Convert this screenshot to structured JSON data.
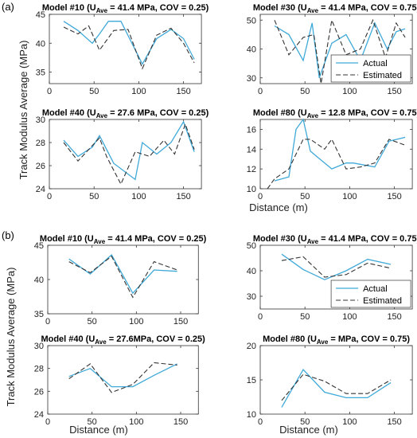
{
  "labels": {
    "a": "(a)",
    "b": "(b)"
  },
  "common": {
    "ylabel": "Track Modulus Average (MPa)",
    "xlabel": "Distance (m)",
    "legend": {
      "actual": "Actual",
      "estimated": "Estimated"
    },
    "colors": {
      "actual": "#3FA9D8",
      "estimated": "#333333"
    }
  },
  "chart_data": [
    {
      "id": "a10",
      "type": "line",
      "title": {
        "pre": "Model #10 (U",
        "sub": "Ave",
        "post": " = 41.4 MPa, COV = 0.25)"
      },
      "xlim": [
        0,
        170
      ],
      "ylim": [
        33,
        45
      ],
      "xticks": [
        0,
        50,
        100,
        150
      ],
      "yticks": [
        35,
        40,
        45
      ],
      "series": [
        {
          "name": "Actual",
          "x": [
            16,
            32,
            48,
            56,
            66,
            80,
            104,
            120,
            136,
            150,
            162
          ],
          "y": [
            43.8,
            42.2,
            40.0,
            41.6,
            43.8,
            43.8,
            36.4,
            40.8,
            42.4,
            40.8,
            37.2
          ]
        },
        {
          "name": "Estimated",
          "x": [
            16,
            32,
            44,
            56,
            72,
            88,
            104,
            120,
            136,
            150,
            162
          ],
          "y": [
            42.8,
            41.6,
            43.0,
            38.8,
            42.2,
            42.4,
            35.6,
            41.4,
            42.6,
            40.0,
            36.6
          ]
        }
      ]
    },
    {
      "id": "a30",
      "type": "line",
      "title": {
        "pre": "Model #30 (U",
        "sub": "Ave",
        "post": " = 41.4 MPa, COV = 0.75)"
      },
      "xlim": [
        0,
        170
      ],
      "ylim": [
        28,
        52
      ],
      "xticks": [
        0,
        50,
        100,
        150
      ],
      "yticks": [
        30,
        40,
        50
      ],
      "legend": {
        "show": true,
        "position": "bottom-right"
      },
      "series": [
        {
          "name": "Actual",
          "x": [
            16,
            32,
            48,
            58,
            66,
            80,
            96,
            112,
            128,
            142,
            152,
            162
          ],
          "y": [
            48.0,
            45.0,
            36.0,
            49.0,
            30.0,
            42.0,
            45.0,
            36.0,
            49.0,
            40.0,
            46.0,
            47.0
          ]
        },
        {
          "name": "Estimated",
          "x": [
            16,
            32,
            48,
            60,
            68,
            80,
            96,
            112,
            126,
            140,
            152,
            162
          ],
          "y": [
            50.0,
            38.0,
            44.0,
            45.0,
            28.0,
            50.0,
            38.0,
            40.0,
            50.0,
            37.0,
            49.0,
            44.0
          ]
        }
      ]
    },
    {
      "id": "a40",
      "type": "line",
      "title": {
        "pre": "Model #40 (U",
        "sub": "Ave",
        "post": " = 27.6  MPa, COV = 0.25)"
      },
      "xlim": [
        0,
        170
      ],
      "ylim": [
        24,
        30
      ],
      "xticks": [
        0,
        50,
        100,
        150
      ],
      "yticks": [
        24,
        26,
        28,
        30
      ],
      "series": [
        {
          "name": "Actual",
          "x": [
            16,
            32,
            48,
            56,
            72,
            96,
            104,
            120,
            136,
            150,
            162
          ],
          "y": [
            28.2,
            26.8,
            27.6,
            28.6,
            26.2,
            24.8,
            28.0,
            27.0,
            28.0,
            29.8,
            27.2
          ]
        },
        {
          "name": "Estimated",
          "x": [
            16,
            32,
            56,
            64,
            80,
            96,
            112,
            128,
            140,
            152,
            162
          ],
          "y": [
            28.0,
            26.4,
            28.4,
            26.8,
            24.4,
            27.2,
            26.8,
            28.2,
            27.0,
            29.6,
            27.4
          ]
        }
      ]
    },
    {
      "id": "a80",
      "type": "line",
      "title": {
        "pre": "Model #80 (U",
        "sub": "Ave",
        "post": " = 12.8  MPa, COV = 0.75)"
      },
      "xlim": [
        0,
        170
      ],
      "ylim": [
        10,
        17
      ],
      "xticks": [
        0,
        50,
        100,
        150
      ],
      "yticks": [
        10,
        12,
        14,
        16
      ],
      "series": [
        {
          "name": "Actual",
          "x": [
            16,
            32,
            40,
            48,
            56,
            64,
            80,
            96,
            104,
            128,
            144,
            162
          ],
          "y": [
            10.8,
            11.2,
            16.0,
            17.0,
            13.8,
            13.2,
            12.0,
            12.6,
            12.6,
            12.2,
            14.8,
            15.2
          ]
        },
        {
          "name": "Estimated",
          "x": [
            8,
            16,
            32,
            48,
            56,
            72,
            80,
            96,
            112,
            128,
            144,
            162
          ],
          "y": [
            10.0,
            11.0,
            12.0,
            15.0,
            15.0,
            14.0,
            15.0,
            12.0,
            12.2,
            12.6,
            15.0,
            14.4
          ]
        }
      ]
    },
    {
      "id": "b10",
      "type": "line",
      "title": {
        "pre": "Model #10 (U",
        "sub": "Ave",
        "post": " =  41.4 MPa, COV = 0.25)"
      },
      "xlim": [
        0,
        170
      ],
      "ylim": [
        35,
        45
      ],
      "xticks": [
        0,
        50,
        100,
        150
      ],
      "yticks": [
        35,
        40,
        45
      ],
      "series": [
        {
          "name": "Actual",
          "x": [
            24,
            48,
            72,
            96,
            120,
            146
          ],
          "y": [
            43.0,
            40.8,
            43.6,
            38.0,
            41.4,
            41.2
          ]
        },
        {
          "name": "Estimated",
          "x": [
            24,
            48,
            72,
            96,
            120,
            146
          ],
          "y": [
            42.6,
            41.0,
            43.4,
            37.4,
            42.6,
            41.4
          ]
        }
      ]
    },
    {
      "id": "b30",
      "type": "line",
      "title": {
        "pre": "Model #30 (U",
        "sub": "Ave",
        "post": " =  41.4 MPa, COV = 0.75)"
      },
      "xlim": [
        0,
        170
      ],
      "ylim": [
        25,
        50
      ],
      "xticks": [
        0,
        50,
        100,
        150
      ],
      "yticks": [
        30,
        40,
        50
      ],
      "legend": {
        "show": true,
        "position": "bottom-right"
      },
      "series": [
        {
          "name": "Actual",
          "x": [
            24,
            48,
            72,
            96,
            120,
            146
          ],
          "y": [
            46.5,
            40.5,
            36.5,
            40.0,
            44.5,
            42.5
          ]
        },
        {
          "name": "Estimated",
          "x": [
            24,
            48,
            72,
            96,
            120,
            146
          ],
          "y": [
            44.0,
            45.5,
            37.5,
            38.5,
            43.0,
            41.0
          ]
        }
      ]
    },
    {
      "id": "b40",
      "type": "line",
      "title": {
        "pre": "Model #40 (U",
        "sub": "Ave",
        "post": " =  27.6MPa, COV = 0.25)"
      },
      "xlim": [
        0,
        170
      ],
      "ylim": [
        24,
        30
      ],
      "xticks": [
        0,
        50,
        100,
        150
      ],
      "yticks": [
        24,
        26,
        28,
        30
      ],
      "series": [
        {
          "name": "Actual",
          "x": [
            24,
            48,
            72,
            96,
            120,
            146
          ],
          "y": [
            27.3,
            28.0,
            26.4,
            26.4,
            27.4,
            28.4
          ]
        },
        {
          "name": "Estimated",
          "x": [
            24,
            48,
            72,
            96,
            120,
            146
          ],
          "y": [
            27.1,
            28.4,
            25.9,
            26.6,
            28.5,
            28.3
          ]
        }
      ]
    },
    {
      "id": "b80",
      "type": "line",
      "title": {
        "pre": "Model #80 (U",
        "sub": "Ave",
        "post": " =  MPa, COV = 0.75)"
      },
      "xlim": [
        0,
        170
      ],
      "ylim": [
        10,
        20
      ],
      "xticks": [
        0,
        50,
        100,
        150
      ],
      "yticks": [
        10,
        15,
        20
      ],
      "series": [
        {
          "name": "Actual",
          "x": [
            24,
            48,
            72,
            96,
            120,
            146
          ],
          "y": [
            11.0,
            16.5,
            13.2,
            12.4,
            12.4,
            14.6
          ]
        },
        {
          "name": "Estimated",
          "x": [
            24,
            48,
            72,
            96,
            120,
            146
          ],
          "y": [
            12.0,
            15.8,
            14.8,
            13.0,
            13.0,
            15.0
          ]
        }
      ]
    }
  ]
}
